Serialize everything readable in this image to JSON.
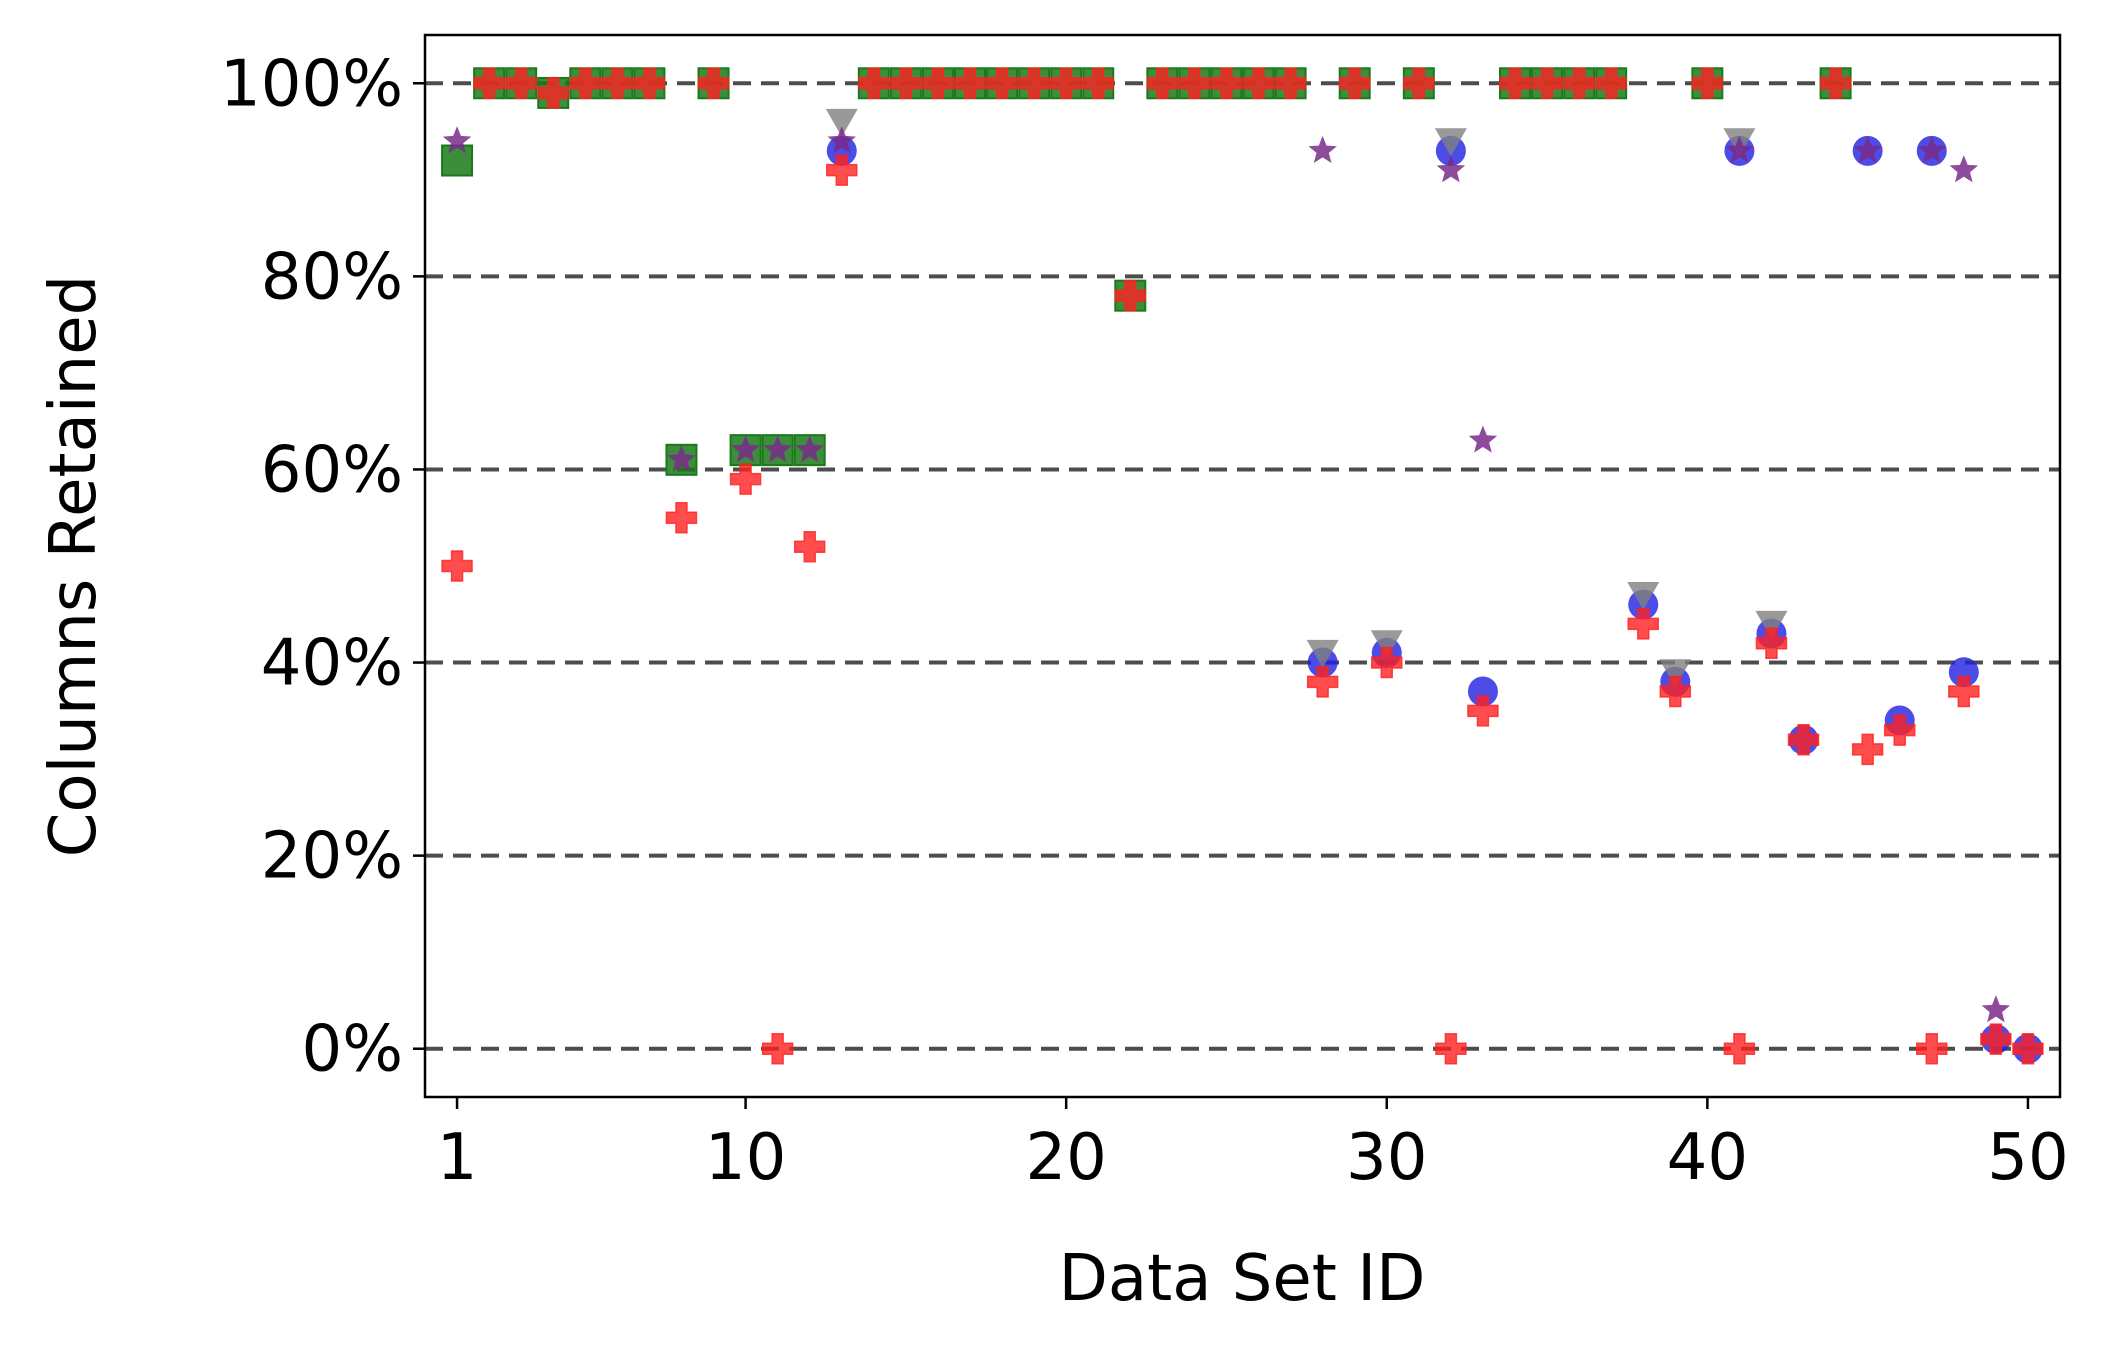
{
  "chart_data": {
    "type": "scatter",
    "title": "",
    "xlabel": "Data Set ID",
    "ylabel": "Columns Retained",
    "xlim": [
      0,
      51
    ],
    "ylim": [
      -5,
      105
    ],
    "x_ticks": [
      1,
      10,
      20,
      30,
      40,
      50
    ],
    "y_ticks": [
      0,
      20,
      40,
      60,
      80,
      100
    ],
    "y_tick_labels": [
      "0%",
      "20%",
      "40%",
      "60%",
      "80%",
      "100%"
    ],
    "grid": "horizontal dashed",
    "legend": "none",
    "series": [
      {
        "marker": "square",
        "color": "#1a7a1a",
        "points": [
          [
            1,
            92
          ],
          [
            2,
            100
          ],
          [
            3,
            100
          ],
          [
            4,
            99
          ],
          [
            5,
            100
          ],
          [
            6,
            100
          ],
          [
            7,
            100
          ],
          [
            8,
            61
          ],
          [
            9,
            100
          ],
          [
            10,
            62
          ],
          [
            11,
            62
          ],
          [
            12,
            62
          ],
          [
            14,
            100
          ],
          [
            15,
            100
          ],
          [
            16,
            100
          ],
          [
            17,
            100
          ],
          [
            18,
            100
          ],
          [
            19,
            100
          ],
          [
            20,
            100
          ],
          [
            21,
            100
          ],
          [
            22,
            78
          ],
          [
            23,
            100
          ],
          [
            24,
            100
          ],
          [
            25,
            100
          ],
          [
            26,
            100
          ],
          [
            27,
            100
          ],
          [
            29,
            100
          ],
          [
            31,
            100
          ],
          [
            34,
            100
          ],
          [
            35,
            100
          ],
          [
            36,
            100
          ],
          [
            37,
            100
          ],
          [
            40,
            100
          ],
          [
            44,
            100
          ]
        ]
      },
      {
        "marker": "circle",
        "color": "#1f1fe0",
        "points": [
          [
            13,
            93
          ],
          [
            28,
            40
          ],
          [
            30,
            41
          ],
          [
            32,
            93
          ],
          [
            33,
            37
          ],
          [
            38,
            46
          ],
          [
            39,
            38
          ],
          [
            41,
            93
          ],
          [
            42,
            43
          ],
          [
            43,
            32
          ],
          [
            45,
            93
          ],
          [
            46,
            34
          ],
          [
            47,
            93
          ],
          [
            48,
            39
          ],
          [
            49,
            1
          ],
          [
            50,
            0
          ]
        ]
      },
      {
        "marker": "triangle-down",
        "color": "#808080",
        "points": [
          [
            13,
            96
          ],
          [
            28,
            41
          ],
          [
            30,
            42
          ],
          [
            32,
            94
          ],
          [
            38,
            47
          ],
          [
            39,
            39
          ],
          [
            41,
            94
          ],
          [
            42,
            44
          ]
        ]
      },
      {
        "marker": "star",
        "color": "#7a2a8a",
        "points": [
          [
            1,
            94
          ],
          [
            8,
            61
          ],
          [
            10,
            62
          ],
          [
            11,
            62
          ],
          [
            12,
            62
          ],
          [
            13,
            94
          ],
          [
            28,
            93
          ],
          [
            32,
            91
          ],
          [
            33,
            63
          ],
          [
            41,
            93
          ],
          [
            45,
            93
          ],
          [
            47,
            93
          ],
          [
            48,
            91
          ],
          [
            49,
            4
          ]
        ]
      },
      {
        "marker": "plus",
        "color": "#ff2020",
        "points": [
          [
            1,
            50
          ],
          [
            2,
            100
          ],
          [
            3,
            100
          ],
          [
            4,
            99
          ],
          [
            5,
            100
          ],
          [
            6,
            100
          ],
          [
            7,
            100
          ],
          [
            8,
            55
          ],
          [
            9,
            100
          ],
          [
            10,
            59
          ],
          [
            11,
            0
          ],
          [
            12,
            52
          ],
          [
            13,
            91
          ],
          [
            14,
            100
          ],
          [
            15,
            100
          ],
          [
            16,
            100
          ],
          [
            17,
            100
          ],
          [
            18,
            100
          ],
          [
            19,
            100
          ],
          [
            20,
            100
          ],
          [
            21,
            100
          ],
          [
            22,
            78
          ],
          [
            23,
            100
          ],
          [
            24,
            100
          ],
          [
            25,
            100
          ],
          [
            26,
            100
          ],
          [
            27,
            100
          ],
          [
            28,
            38
          ],
          [
            29,
            100
          ],
          [
            30,
            40
          ],
          [
            31,
            100
          ],
          [
            32,
            0
          ],
          [
            33,
            35
          ],
          [
            34,
            100
          ],
          [
            35,
            100
          ],
          [
            36,
            100
          ],
          [
            37,
            100
          ],
          [
            38,
            44
          ],
          [
            39,
            37
          ],
          [
            40,
            100
          ],
          [
            41,
            0
          ],
          [
            42,
            42
          ],
          [
            43,
            32
          ],
          [
            44,
            100
          ],
          [
            45,
            31
          ],
          [
            46,
            33
          ],
          [
            47,
            0
          ],
          [
            48,
            37
          ],
          [
            49,
            1
          ],
          [
            50,
            0
          ]
        ]
      }
    ]
  }
}
